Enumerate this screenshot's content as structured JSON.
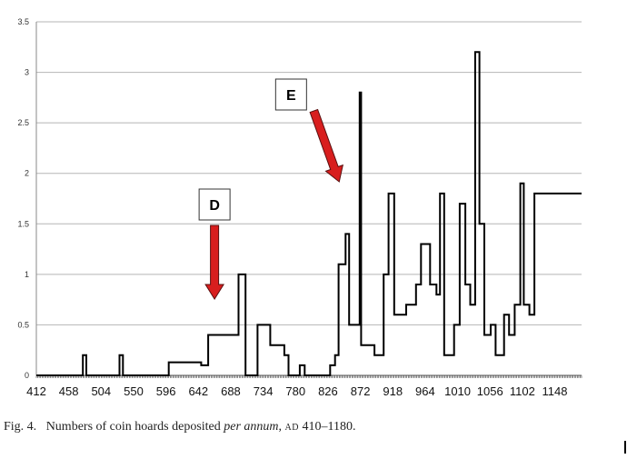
{
  "chart_data": {
    "type": "line",
    "x_tick_labels": [
      "412",
      "458",
      "504",
      "550",
      "596",
      "642",
      "688",
      "734",
      "780",
      "826",
      "872",
      "918",
      "964",
      "1010",
      "1056",
      "1102",
      "1148"
    ],
    "y_tick_labels": [
      "0",
      "0.5",
      "1",
      "1.5",
      "2",
      "2.5",
      "3",
      "3.5"
    ],
    "ylim": [
      0,
      3.5
    ],
    "xlim": [
      412,
      1186
    ],
    "grid": "horizontal",
    "series": [
      {
        "x": [
          412,
          478,
          483,
          490,
          508,
          530,
          535,
          542,
          559,
          596,
          600,
          646,
          656,
          693,
          699,
          709,
          714,
          726,
          744,
          752,
          764,
          770,
          780,
          786,
          793,
          803,
          813,
          829,
          836,
          841,
          846,
          851,
          856,
          864,
          871,
          873,
          878,
          885,
          892,
          905,
          912,
          920,
          923,
          931,
          937,
          951,
          958,
          971,
          980,
          985,
          991,
          997,
          1005,
          1013,
          1021,
          1028,
          1035,
          1041,
          1048,
          1057,
          1064,
          1069,
          1076,
          1083,
          1091,
          1099,
          1104,
          1112,
          1119,
          1125,
          1133,
          1142,
          1148,
          1155,
          1162,
          1170,
          1180
        ],
        "values": [
          0,
          0.2,
          0,
          0,
          0,
          0.2,
          0,
          0,
          0,
          0,
          0.13,
          0.1,
          0.4,
          0.4,
          1,
          0,
          0,
          0.5,
          0.3,
          0.3,
          0.2,
          0,
          0,
          0.1,
          0,
          0,
          0,
          0.1,
          0.2,
          1.1,
          1.1,
          1.4,
          0.5,
          0.5,
          2.8,
          0.3,
          0.3,
          0.3,
          0.2,
          1,
          1.8,
          0.6,
          0.6,
          0.6,
          0.7,
          0.9,
          1.3,
          0.9,
          0.8,
          1.8,
          0.2,
          0.2,
          0.5,
          1.7,
          0.9,
          0.7,
          3.2,
          1.5,
          0.4,
          0.5,
          0.2,
          0.2,
          0.6,
          0.4,
          0.7,
          1.9,
          0.7,
          0.6,
          1.8,
          1.8,
          1.8,
          1.8,
          1.8,
          1.8,
          1.8,
          1.8,
          1.8
        ]
      }
    ],
    "annotations": [
      {
        "label": "D",
        "arrow_points_to_x": 665
      },
      {
        "label": "E",
        "arrow_points_to_x": 842
      }
    ]
  },
  "caption": {
    "fig_label": "Fig. 4.",
    "text_before": "Numbers of coin hoards deposited",
    "italic_text": "per annum",
    "smallcaps_text": "AD",
    "text_after": "410–1180."
  },
  "colors": {
    "grid": "#b5b5b5",
    "line": "#000000",
    "arrow_fill": "#d81e1e",
    "arrow_stroke": "#5a1010"
  }
}
